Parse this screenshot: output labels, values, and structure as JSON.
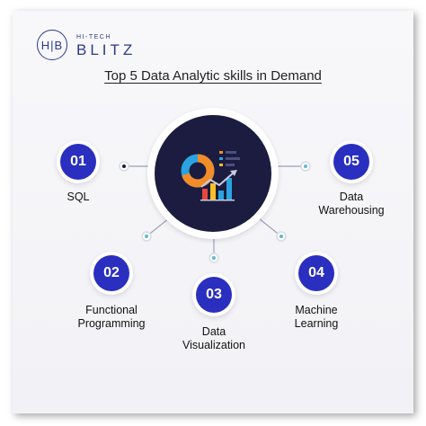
{
  "brand": {
    "monogram": "H|B",
    "small": "HI-TECH",
    "big": "BLITZ"
  },
  "title": "Top 5 Data Analytic skills in Demand",
  "skills": [
    {
      "number": "01",
      "lines": [
        "SQL"
      ]
    },
    {
      "number": "02",
      "lines": [
        "Functional",
        "Programming"
      ]
    },
    {
      "number": "03",
      "lines": [
        "Data",
        "Visualization"
      ]
    },
    {
      "number": "04",
      "lines": [
        "Machine",
        "Learning"
      ]
    },
    {
      "number": "05",
      "lines": [
        "Data",
        "Warehousing"
      ]
    }
  ],
  "colors": {
    "badge": "#2a2fbf",
    "hub": "#1b1c3f",
    "brand": "#2b3a8a",
    "donut_orange": "#f28c28",
    "donut_blue": "#2aa3e0",
    "bar_red": "#e8453c",
    "bar_yellow": "#f6c026",
    "bar_blue": "#2aa3e0"
  },
  "hub_icon": "analytics-dashboard-icon"
}
